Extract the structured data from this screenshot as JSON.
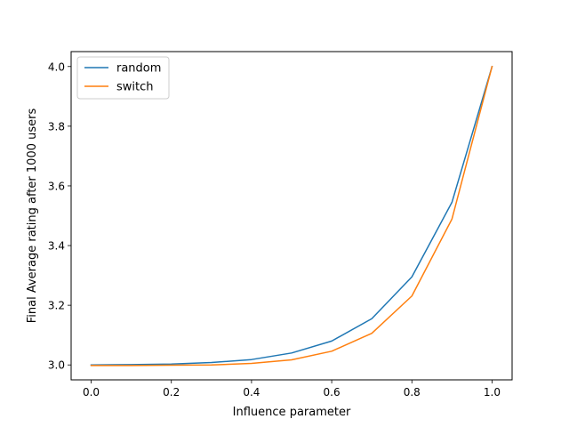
{
  "chart_data": {
    "type": "line",
    "title": "",
    "xlabel": "Influence parameter",
    "ylabel": "Final Average rating after 1000 users",
    "xlim": [
      -0.05,
      1.05
    ],
    "ylim": [
      2.95,
      4.05
    ],
    "x_ticks": [
      0.0,
      0.2,
      0.4,
      0.6,
      0.8,
      1.0
    ],
    "x_tick_labels": [
      "0.0",
      "0.2",
      "0.4",
      "0.6",
      "0.8",
      "1.0"
    ],
    "y_ticks": [
      3.0,
      3.2,
      3.4,
      3.6,
      3.8,
      4.0
    ],
    "y_tick_labels": [
      "3.0",
      "3.2",
      "3.4",
      "3.6",
      "3.8",
      "4.0"
    ],
    "grid": false,
    "legend_position": "top-left",
    "x": [
      0.0,
      0.1,
      0.2,
      0.3,
      0.4,
      0.5,
      0.6,
      0.7,
      0.8,
      0.9,
      1.0
    ],
    "series": [
      {
        "name": "random",
        "color": "#1f77b4",
        "values": [
          3.0,
          3.001,
          3.003,
          3.008,
          3.018,
          3.04,
          3.08,
          3.155,
          3.295,
          3.545,
          4.0
        ]
      },
      {
        "name": "switch",
        "color": "#ff7f0e",
        "values": [
          2.998,
          2.998,
          2.999,
          3.0,
          3.005,
          3.017,
          3.046,
          3.106,
          3.231,
          3.489,
          4.0
        ]
      }
    ]
  }
}
